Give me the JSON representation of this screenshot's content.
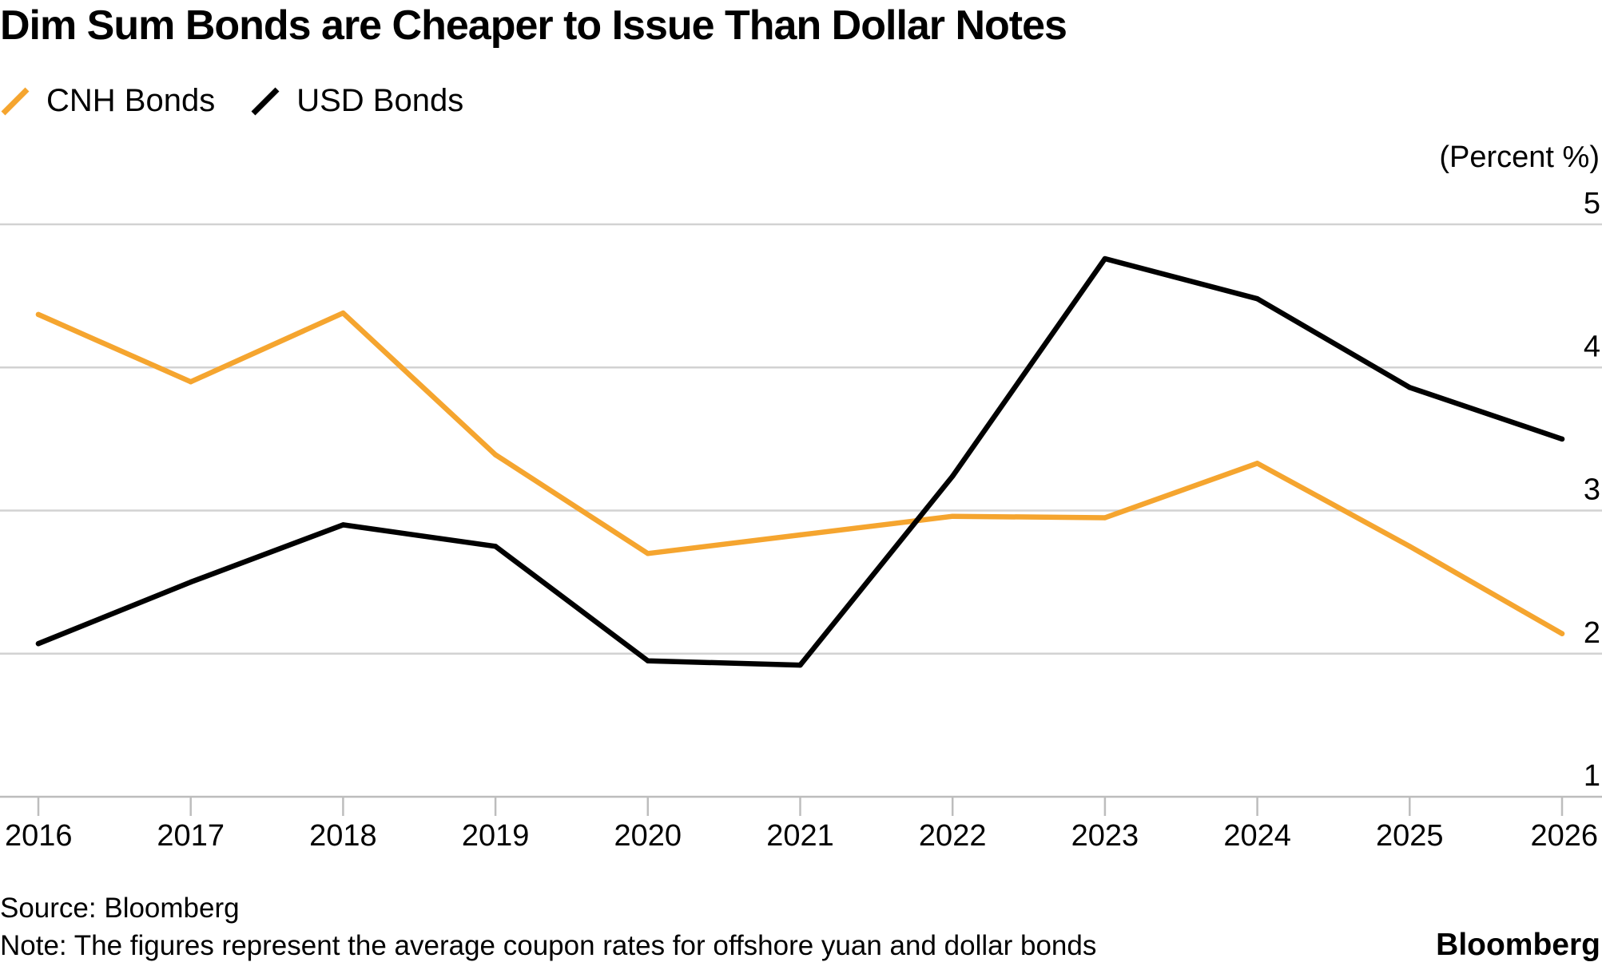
{
  "title": "Dim Sum Bonds are Cheaper to Issue Than Dollar Notes",
  "legend": [
    {
      "label": "CNH Bonds",
      "color": "#f5a52f"
    },
    {
      "label": "USD Bonds",
      "color": "#000000"
    }
  ],
  "footer": {
    "source": "Source: Bloomberg",
    "note": "Note: The figures represent the average coupon rates for offshore yuan and dollar bonds",
    "brand": "Bloomberg"
  },
  "chart_data": {
    "type": "line",
    "title": "Dim Sum Bonds are Cheaper to Issue Than Dollar Notes",
    "xlabel": "",
    "ylabel": "(Percent %)",
    "ylim": [
      1,
      5
    ],
    "yticks": [
      1,
      2,
      3,
      4,
      5
    ],
    "grid": true,
    "legend_position": "top-left",
    "x": [
      "2016",
      "2017",
      "2018",
      "2019",
      "2020",
      "2021",
      "2022",
      "2023",
      "2024",
      "2025",
      "2026"
    ],
    "series": [
      {
        "name": "CNH Bonds",
        "color": "#f5a52f",
        "values": [
          4.37,
          3.9,
          4.38,
          3.39,
          2.7,
          2.83,
          2.96,
          2.95,
          3.33,
          2.75,
          2.14
        ]
      },
      {
        "name": "USD Bonds",
        "color": "#000000",
        "values": [
          2.07,
          2.5,
          2.9,
          2.75,
          1.95,
          1.92,
          3.24,
          4.76,
          4.48,
          3.86,
          3.5
        ]
      }
    ]
  }
}
